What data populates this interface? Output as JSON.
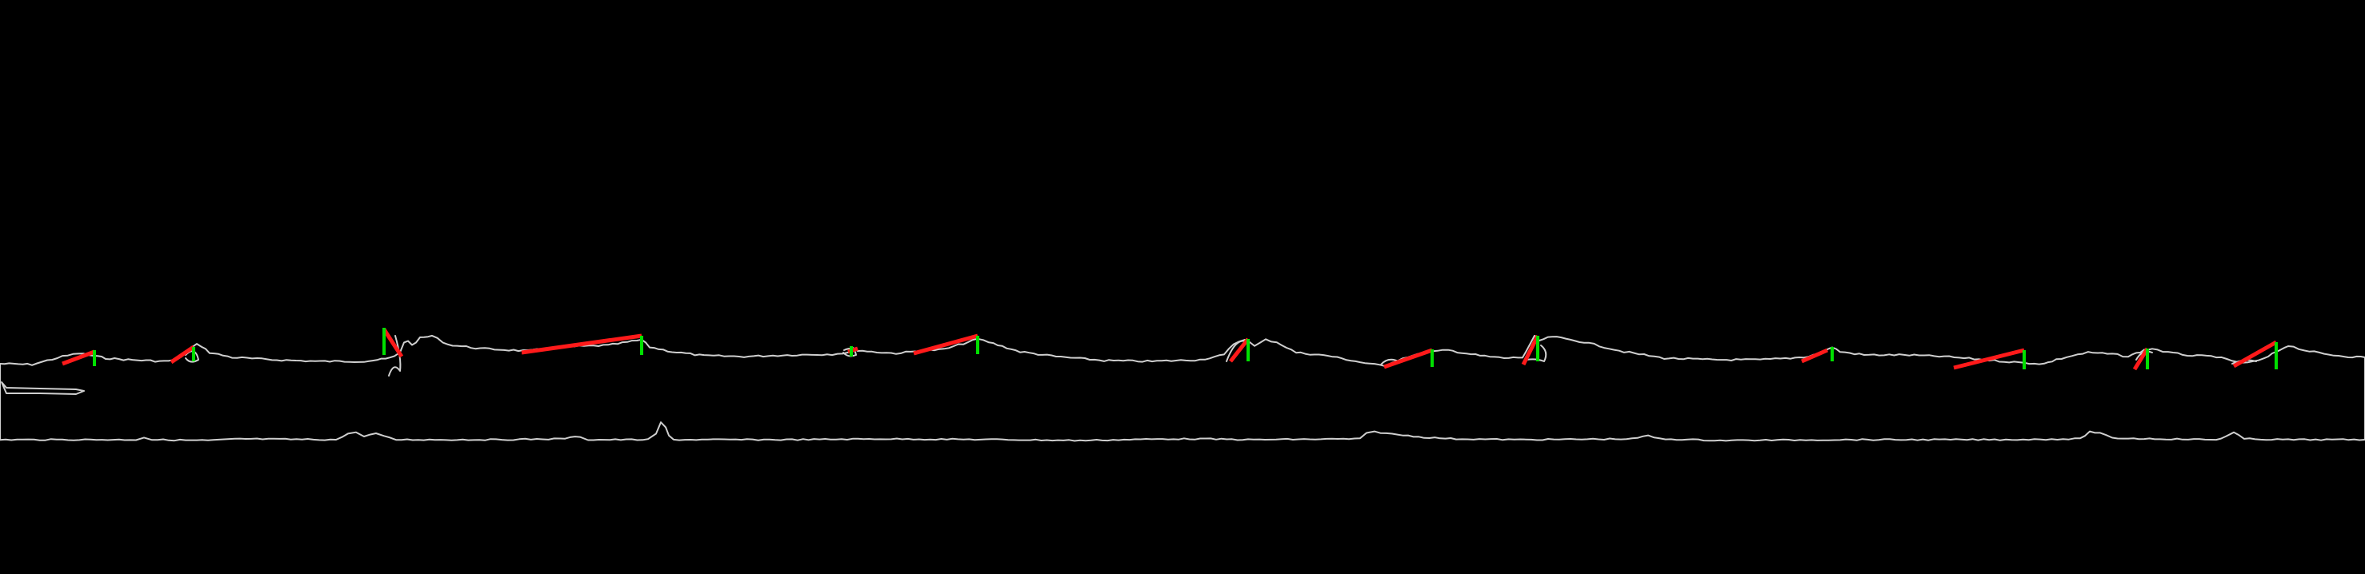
{
  "colors": {
    "background": "#000000",
    "outline": "#cfcfcf",
    "red_marker": "#ff1a1a",
    "green_marker": "#00e000"
  }
}
